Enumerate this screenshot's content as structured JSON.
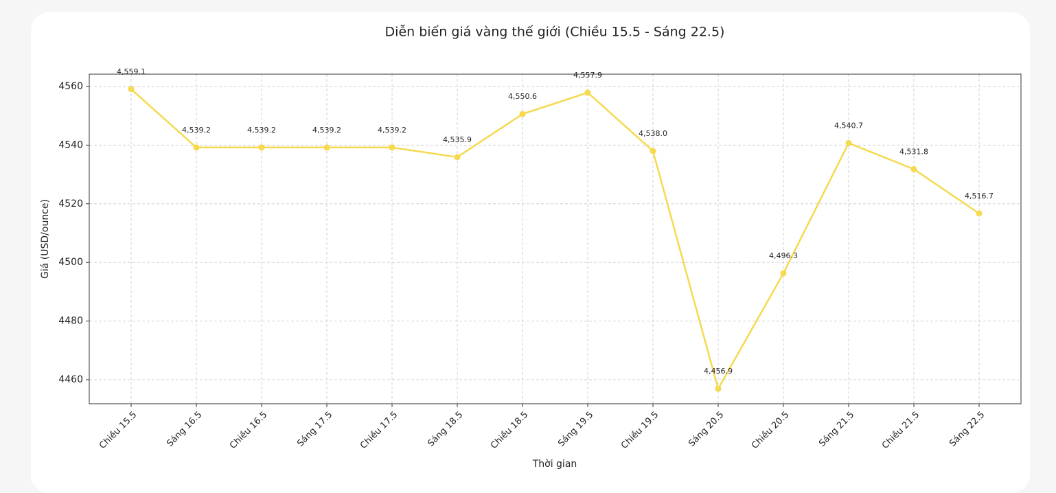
{
  "chart_data": {
    "type": "line",
    "title": "Diễn biến giá vàng thế giới (Chiều 15.5 - Sáng 22.5)",
    "x_label": "Thời gian",
    "y_label": "Giá (USD/ounce)",
    "categories": [
      "Chiều 15.5",
      "Sáng 16.5",
      "Chiều 16.5",
      "Sáng 17.5",
      "Chiều 17.5",
      "Sáng 18.5",
      "Chiều 18.5",
      "Sáng 19.5",
      "Chiều 19.5",
      "Sáng 20.5",
      "Chiều 20.5",
      "Sáng 21.5",
      "Chiều 21.5",
      "Sáng 22.5"
    ],
    "values": [
      4559.1,
      4539.2,
      4539.2,
      4539.2,
      4539.2,
      4535.9,
      4550.6,
      4557.9,
      4538.0,
      4456.9,
      4496.3,
      4540.7,
      4531.8,
      4516.7
    ],
    "value_labels": [
      "4,559.1",
      "4,539.2",
      "4,539.2",
      "4,539.2",
      "4,539.2",
      "4,535.9",
      "4,550.6",
      "4,557.9",
      "4,538.0",
      "4,456.9",
      "4,496.3",
      "4,540.7",
      "4,531.8",
      "4,516.7"
    ],
    "color": "#f5d94e",
    "ylim": [
      4451.8,
      4564.2
    ],
    "yticks": [
      4460,
      4480,
      4500,
      4520,
      4540,
      4560
    ],
    "grid": true
  }
}
